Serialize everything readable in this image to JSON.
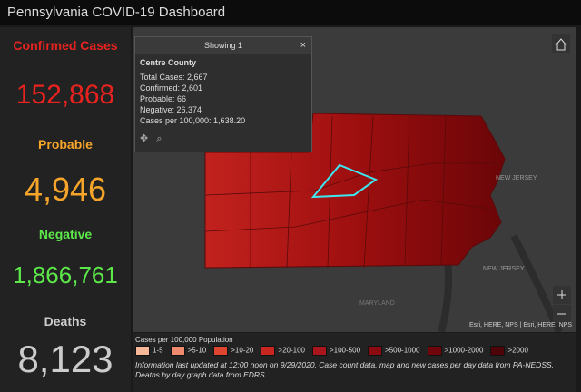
{
  "header": {
    "title": "Pennsylvania COVID-19 Dashboard"
  },
  "stats": [
    {
      "label": "Confirmed Cases",
      "value": "152,868"
    },
    {
      "label": "Probable",
      "value": "4,946"
    },
    {
      "label": "Negative",
      "value": "1,866,761"
    },
    {
      "label": "Deaths",
      "value": "8,123"
    }
  ],
  "popup": {
    "header": "Showing 1",
    "title": "Centre County",
    "lines": [
      "Total Cases: 2,667",
      "Confirmed: 2,601",
      "Probable: 66",
      "Negative: 26,374",
      "Cases per 100,000: 1,638.20"
    ]
  },
  "map": {
    "labels": [
      "NEW JERSEY",
      "NEW JERSEY",
      "MARYLAND"
    ],
    "attribution": "Esri, HERE, NPS | Esri, HERE, NPS"
  },
  "legend": {
    "title": "Cases per 100,000 Population",
    "items": [
      "1-5",
      ">5-10",
      ">10-20",
      ">20-100",
      ">100-500",
      ">500-1000",
      ">1000-2000",
      ">2000"
    ]
  },
  "footer": {
    "note": "Information last updated at 12:00 noon on 9/29/2020. Case count data, map and new cases per day data from PA-NEDSS. Deaths by day graph data from EDRS."
  }
}
